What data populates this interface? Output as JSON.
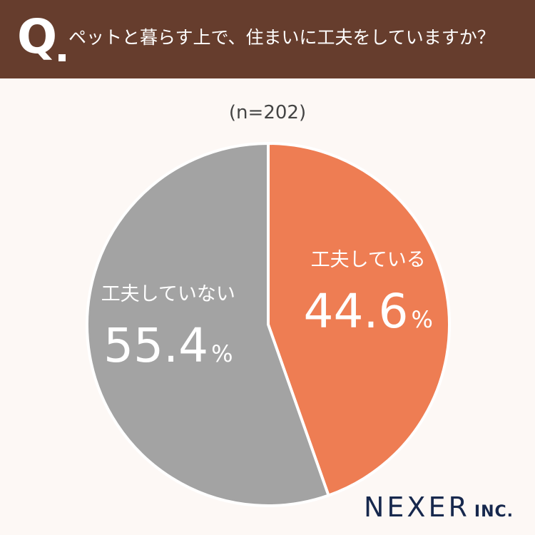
{
  "header": {
    "q_label": "Q",
    "question": "ペットと暮らす上で、住まいに工夫をしていますか？"
  },
  "sample_size": "(n=202)",
  "colors": {
    "header_bg": "#663d2d",
    "page_bg": "#fdf8f5",
    "slice_yes": "#ee7d53",
    "slice_no": "#a3a3a3",
    "brand": "#17284d"
  },
  "chart_data": {
    "type": "pie",
    "title": "",
    "slices": [
      {
        "label": "工夫している",
        "value": 44.6,
        "display": "44.6",
        "unit": "%",
        "color": "#ee7d53"
      },
      {
        "label": "工夫していない",
        "value": 55.4,
        "display": "55.4",
        "unit": "%",
        "color": "#a3a3a3"
      }
    ],
    "start_angle_deg": 0,
    "direction": "clockwise"
  },
  "brand": {
    "name": "NEXER",
    "suffix": "INC."
  }
}
